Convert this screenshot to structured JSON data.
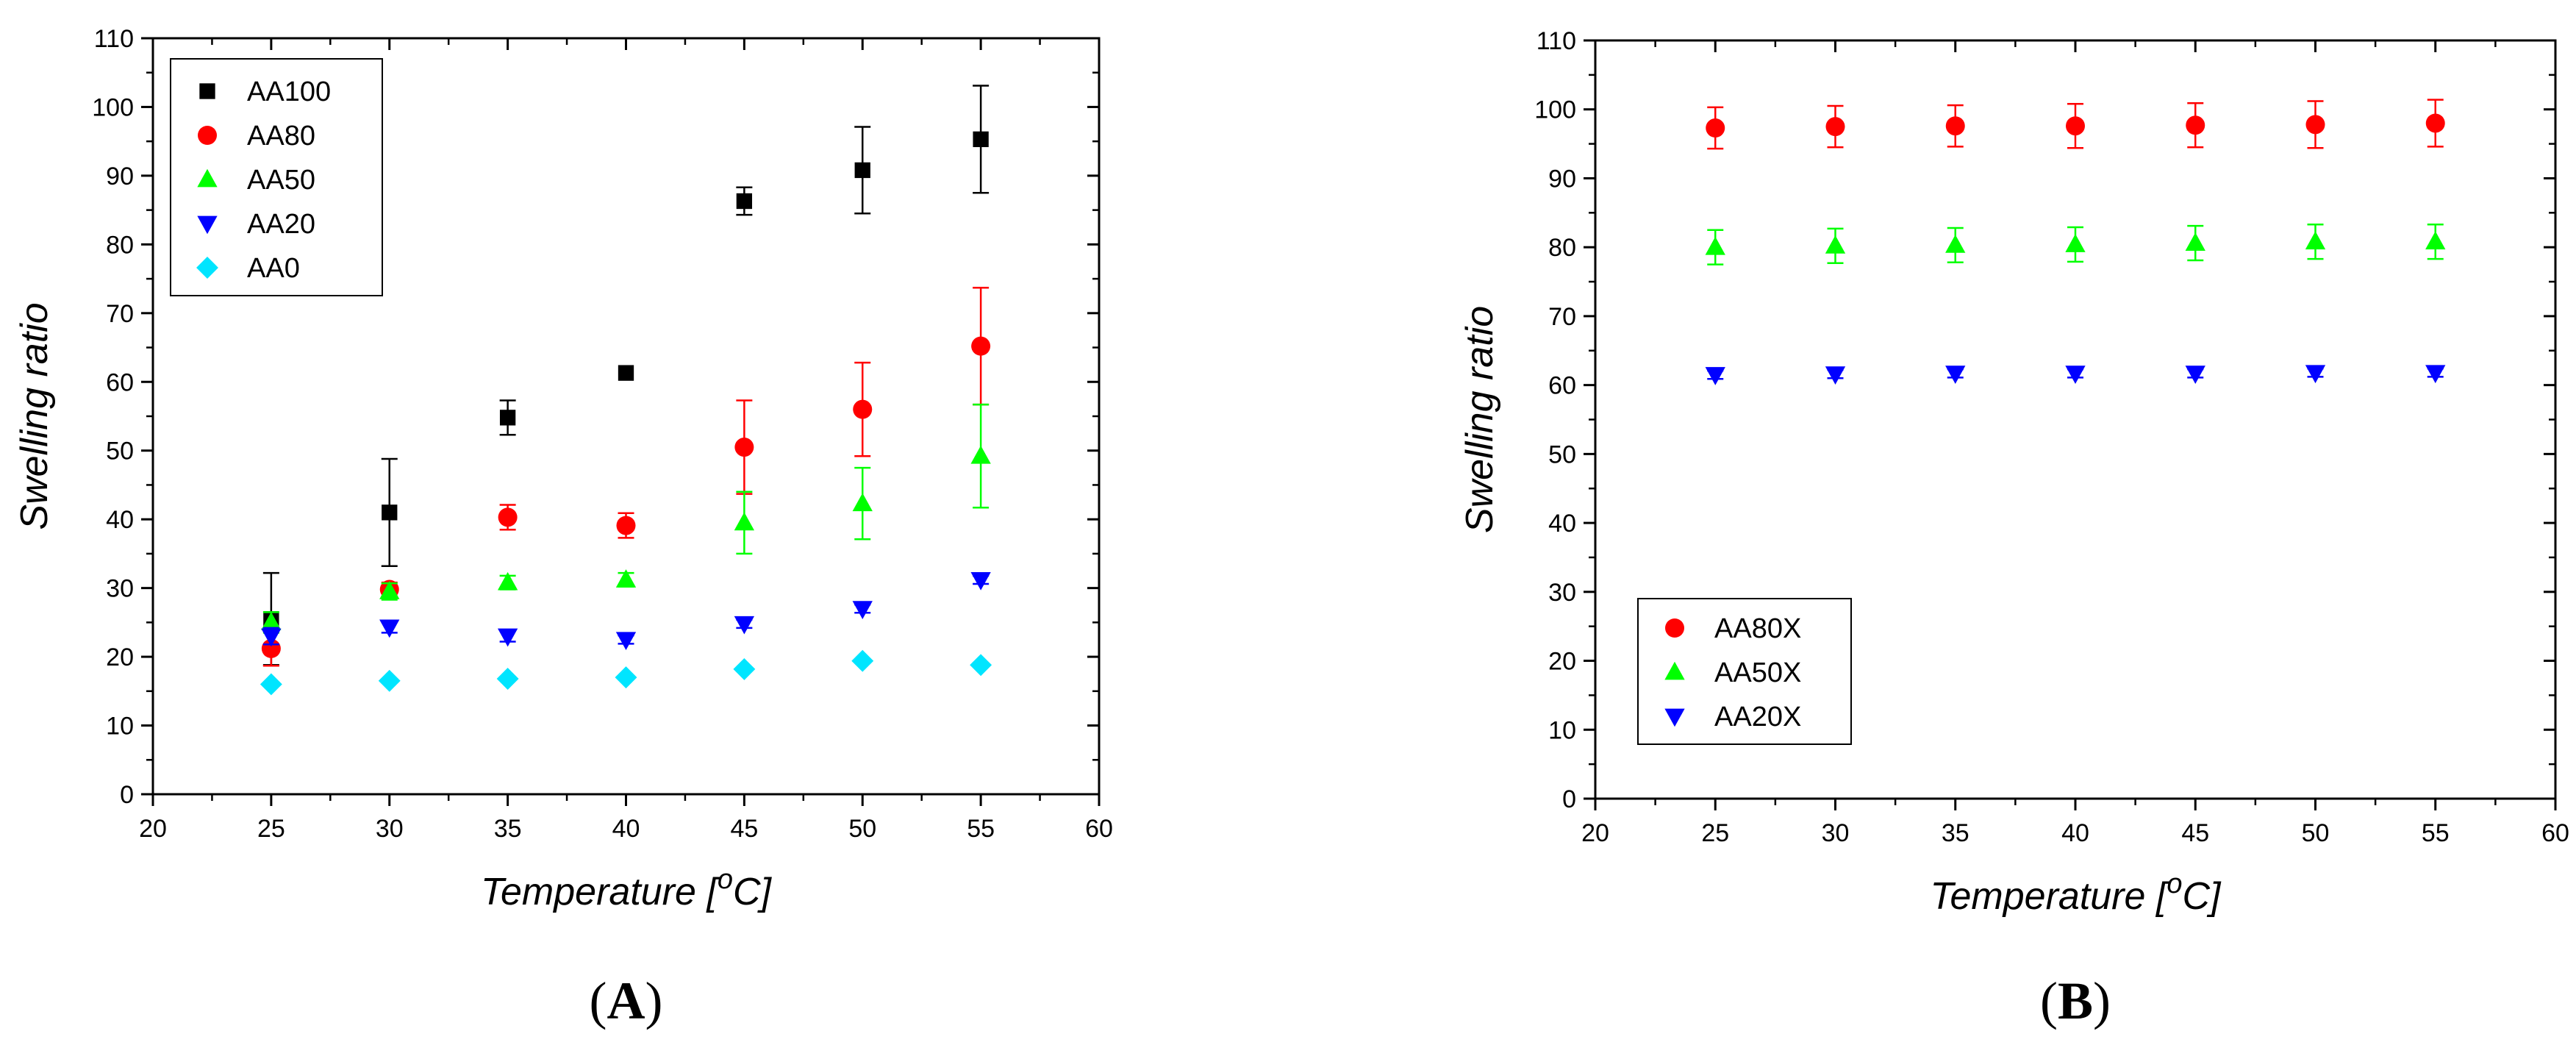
{
  "chart_data": [
    {
      "type": "scatter",
      "panel_label": {
        "open": "(",
        "letter": "A",
        "close": ")"
      },
      "xlabel": {
        "main": "Temperature [",
        "sup": "o",
        "unit": "C]"
      },
      "ylabel": "Swelling ratio",
      "xlim": [
        20,
        60
      ],
      "ylim": [
        0,
        110
      ],
      "xticks": [
        20,
        25,
        30,
        35,
        40,
        45,
        50,
        55,
        60
      ],
      "yticks": [
        0,
        10,
        20,
        30,
        40,
        50,
        60,
        70,
        80,
        90,
        100,
        110
      ],
      "grid": false,
      "legend_position": "top-left",
      "series": [
        {
          "name": "AA100",
          "marker": "square",
          "color": "#000000",
          "x": [
            25,
            30,
            35,
            40,
            45,
            50,
            55
          ],
          "y": [
            25.5,
            41.0,
            54.8,
            61.3,
            86.3,
            90.8,
            95.3
          ],
          "err": [
            6.7,
            7.8,
            2.5,
            0,
            2.0,
            6.3,
            7.8
          ]
        },
        {
          "name": "AA80",
          "marker": "circle",
          "color": "#ff0000",
          "x": [
            25,
            30,
            35,
            40,
            45,
            50,
            55
          ],
          "y": [
            21.2,
            29.8,
            40.3,
            39.1,
            50.5,
            56.0,
            65.2
          ],
          "err": [
            2.5,
            1.0,
            1.8,
            1.8,
            6.8,
            6.8,
            8.5
          ]
        },
        {
          "name": "AA50",
          "marker": "triangle-up",
          "color": "#00ff00",
          "x": [
            25,
            30,
            35,
            40,
            45,
            50,
            55
          ],
          "y": [
            25.0,
            29.5,
            30.8,
            31.2,
            39.5,
            42.3,
            49.2
          ],
          "err": [
            1.5,
            1.2,
            1.0,
            1.0,
            4.5,
            5.2,
            7.5
          ]
        },
        {
          "name": "AA20",
          "marker": "triangle-down",
          "color": "#0000ff",
          "x": [
            25,
            30,
            35,
            40,
            45,
            50,
            55
          ],
          "y": [
            23.0,
            24.3,
            23.0,
            22.5,
            24.8,
            27.0,
            31.2
          ],
          "err": [
            1.2,
            0.8,
            0.8,
            0.6,
            0.6,
            0.6,
            0.6
          ]
        },
        {
          "name": "AA0",
          "marker": "diamond",
          "color": "#00e5ff",
          "x": [
            25,
            30,
            35,
            40,
            45,
            50,
            55
          ],
          "y": [
            16.0,
            16.5,
            16.8,
            17.0,
            18.2,
            19.4,
            18.8
          ],
          "err": [
            0,
            0,
            0,
            0,
            0,
            0,
            0
          ]
        }
      ]
    },
    {
      "type": "scatter",
      "panel_label": {
        "open": "(",
        "letter": "B",
        "close": ")"
      },
      "xlabel": {
        "main": "Temperature [",
        "sup": "o",
        "unit": "C]"
      },
      "ylabel": "Swelling ratio",
      "xlim": [
        20,
        60
      ],
      "ylim": [
        0,
        110
      ],
      "xticks": [
        20,
        25,
        30,
        35,
        40,
        45,
        50,
        55,
        60
      ],
      "yticks": [
        0,
        10,
        20,
        30,
        40,
        50,
        60,
        70,
        80,
        90,
        100,
        110
      ],
      "grid": false,
      "legend_position": "bottom-left",
      "series": [
        {
          "name": "AA80X",
          "marker": "circle",
          "color": "#ff0000",
          "x": [
            25,
            30,
            35,
            40,
            45,
            50,
            55
          ],
          "y": [
            97.3,
            97.5,
            97.6,
            97.6,
            97.7,
            97.8,
            98.0
          ],
          "err": [
            3.0,
            3.0,
            3.0,
            3.2,
            3.2,
            3.4,
            3.4
          ]
        },
        {
          "name": "AA50X",
          "marker": "triangle-up",
          "color": "#00ff00",
          "x": [
            25,
            30,
            35,
            40,
            45,
            50,
            55
          ],
          "y": [
            80.0,
            80.2,
            80.3,
            80.4,
            80.6,
            80.8,
            80.8
          ],
          "err": [
            2.5,
            2.5,
            2.5,
            2.5,
            2.5,
            2.5,
            2.5
          ]
        },
        {
          "name": "AA20X",
          "marker": "triangle-down",
          "color": "#0000ff",
          "x": [
            25,
            30,
            35,
            40,
            45,
            50,
            55
          ],
          "y": [
            61.5,
            61.6,
            61.7,
            61.7,
            61.7,
            61.8,
            61.8
          ],
          "err": [
            0.6,
            0.6,
            0.6,
            0.6,
            0.6,
            0.6,
            0.6
          ]
        }
      ]
    }
  ]
}
